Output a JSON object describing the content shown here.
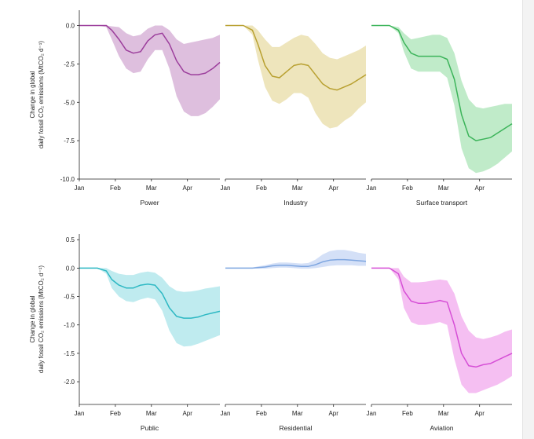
{
  "chart_data": [
    {
      "type": "area",
      "title": "Power",
      "ylabel_line1": "Change in global",
      "ylabel_line2": "daily fossil CO₂ emissions (MtCO₂ d⁻¹)",
      "ylim": [
        -10,
        1
      ],
      "yticks": [
        "0.0",
        "-2.5",
        "-5.0",
        "-7.5",
        "-10.0"
      ],
      "yticks_values": [
        0,
        -2.5,
        -5,
        -7.5,
        -10
      ],
      "xticks": [
        "Jan",
        "Feb",
        "Mar",
        "Apr"
      ],
      "color": "#9c3e9c",
      "band_color": "#d8b4d8",
      "x": [
        0,
        0.5,
        0.75,
        0.9,
        1.1,
        1.3,
        1.5,
        1.7,
        1.9,
        2.1,
        2.3,
        2.5,
        2.7,
        2.9,
        3.1,
        3.3,
        3.5,
        3.7,
        3.9
      ],
      "values": [
        0,
        0,
        0,
        -0.3,
        -0.9,
        -1.6,
        -1.8,
        -1.7,
        -1.0,
        -0.6,
        -0.5,
        -1.2,
        -2.3,
        -3.0,
        -3.2,
        -3.2,
        -3.1,
        -2.8,
        -2.4
      ],
      "lower": [
        0,
        0,
        -0.1,
        -0.9,
        -2.0,
        -2.8,
        -3.1,
        -3.0,
        -2.2,
        -1.6,
        -1.6,
        -2.8,
        -4.6,
        -5.6,
        -5.9,
        -5.9,
        -5.7,
        -5.3,
        -4.8
      ],
      "upper": [
        0,
        0,
        0,
        -0.05,
        -0.1,
        -0.5,
        -0.7,
        -0.6,
        -0.2,
        0,
        0,
        -0.3,
        -0.9,
        -1.2,
        -1.1,
        -1.0,
        -0.9,
        -0.8,
        -0.6
      ]
    },
    {
      "type": "area",
      "title": "Industry",
      "ylim": [
        -10,
        1
      ],
      "xticks": [
        "Jan",
        "Feb",
        "Mar",
        "Apr"
      ],
      "color": "#b8a030",
      "band_color": "#ebe0b0",
      "x": [
        0,
        0.5,
        0.75,
        0.9,
        1.1,
        1.3,
        1.5,
        1.7,
        1.9,
        2.1,
        2.3,
        2.5,
        2.7,
        2.9,
        3.1,
        3.3,
        3.5,
        3.7,
        3.9
      ],
      "values": [
        0,
        0,
        -0.3,
        -1.2,
        -2.6,
        -3.3,
        -3.4,
        -3.0,
        -2.6,
        -2.5,
        -2.6,
        -3.2,
        -3.8,
        -4.1,
        -4.2,
        -4.0,
        -3.8,
        -3.5,
        -3.2
      ],
      "lower": [
        0,
        0,
        -0.6,
        -2.2,
        -4.0,
        -4.9,
        -5.1,
        -4.8,
        -4.4,
        -4.4,
        -4.7,
        -5.7,
        -6.4,
        -6.7,
        -6.6,
        -6.2,
        -5.9,
        -5.4,
        -5.0
      ],
      "upper": [
        0,
        0,
        0,
        -0.3,
        -0.9,
        -1.4,
        -1.4,
        -1.1,
        -0.8,
        -0.6,
        -0.7,
        -1.2,
        -1.8,
        -2.1,
        -2.2,
        -2.0,
        -1.8,
        -1.6,
        -1.3
      ]
    },
    {
      "type": "area",
      "title": "Surface transport",
      "ylim": [
        -10,
        1
      ],
      "xticks": [
        "Jan",
        "Feb",
        "Mar",
        "Apr"
      ],
      "color": "#3cb45a",
      "band_color": "#b5e8bf",
      "x": [
        0,
        0.5,
        0.75,
        0.9,
        1.1,
        1.3,
        1.5,
        1.7,
        1.9,
        2.1,
        2.3,
        2.5,
        2.7,
        2.9,
        3.1,
        3.3,
        3.5,
        3.7,
        3.9
      ],
      "values": [
        0,
        0,
        -0.3,
        -1.1,
        -1.8,
        -2.0,
        -2.0,
        -2.0,
        -2.0,
        -2.2,
        -3.5,
        -5.8,
        -7.2,
        -7.5,
        -7.4,
        -7.3,
        -7.0,
        -6.7,
        -6.4
      ],
      "lower": [
        0,
        0,
        -0.5,
        -1.7,
        -2.8,
        -3.0,
        -3.0,
        -3.0,
        -3.0,
        -3.4,
        -5.2,
        -8.0,
        -9.3,
        -9.6,
        -9.5,
        -9.3,
        -9.0,
        -8.6,
        -8.2
      ],
      "upper": [
        0,
        0,
        -0.1,
        -0.5,
        -0.9,
        -0.8,
        -0.7,
        -0.6,
        -0.6,
        -0.8,
        -1.8,
        -3.6,
        -4.8,
        -5.3,
        -5.4,
        -5.3,
        -5.2,
        -5.1,
        -5.1
      ]
    },
    {
      "type": "area",
      "title": "Public",
      "ylabel_line1": "Change in global",
      "ylabel_line2": "daily fossil CO₂ emissions (MtCO₂ d⁻¹)",
      "ylim": [
        -2.4,
        0.6
      ],
      "yticks": [
        "0.5",
        "0.0",
        "-0.5",
        "-1.0",
        "-1.5",
        "-2.0"
      ],
      "yticks_values": [
        0.5,
        0,
        -0.5,
        -1.0,
        -1.5,
        -2.0
      ],
      "xticks": [
        "Jan",
        "Feb",
        "Mar",
        "Apr"
      ],
      "color": "#2db8c3",
      "band_color": "#b4e8ec",
      "x": [
        0,
        0.5,
        0.75,
        0.9,
        1.1,
        1.3,
        1.5,
        1.7,
        1.9,
        2.1,
        2.3,
        2.5,
        2.7,
        2.9,
        3.1,
        3.3,
        3.5,
        3.7,
        3.9
      ],
      "values": [
        0,
        0,
        -0.05,
        -0.2,
        -0.3,
        -0.35,
        -0.35,
        -0.3,
        -0.28,
        -0.3,
        -0.45,
        -0.7,
        -0.85,
        -0.88,
        -0.88,
        -0.86,
        -0.82,
        -0.79,
        -0.76
      ],
      "lower": [
        0,
        0,
        -0.1,
        -0.35,
        -0.5,
        -0.58,
        -0.6,
        -0.55,
        -0.52,
        -0.55,
        -0.75,
        -1.1,
        -1.32,
        -1.38,
        -1.37,
        -1.33,
        -1.28,
        -1.23,
        -1.18
      ],
      "upper": [
        0,
        0,
        0,
        -0.05,
        -0.1,
        -0.12,
        -0.12,
        -0.08,
        -0.06,
        -0.08,
        -0.17,
        -0.32,
        -0.4,
        -0.42,
        -0.41,
        -0.39,
        -0.36,
        -0.34,
        -0.32
      ]
    },
    {
      "type": "area",
      "title": "Residential",
      "ylim": [
        -2.4,
        0.6
      ],
      "xticks": [
        "Jan",
        "Feb",
        "Mar",
        "Apr"
      ],
      "color": "#7ea6e0",
      "band_color": "#cddbf6",
      "x": [
        0,
        0.5,
        0.75,
        0.9,
        1.1,
        1.3,
        1.5,
        1.7,
        1.9,
        2.1,
        2.3,
        2.5,
        2.7,
        2.9,
        3.1,
        3.3,
        3.5,
        3.7,
        3.9
      ],
      "values": [
        0,
        0,
        0,
        0.01,
        0.02,
        0.04,
        0.05,
        0.05,
        0.04,
        0.03,
        0.03,
        0.06,
        0.11,
        0.14,
        0.15,
        0.15,
        0.14,
        0.13,
        0.12
      ],
      "lower": [
        0,
        0,
        0,
        -0.01,
        -0.01,
        0,
        0.01,
        0.01,
        0,
        -0.01,
        -0.01,
        0,
        0.02,
        0.04,
        0.05,
        0.05,
        0.05,
        0.04,
        0.04
      ],
      "upper": [
        0,
        0,
        0.01,
        0.03,
        0.05,
        0.08,
        0.1,
        0.1,
        0.09,
        0.08,
        0.09,
        0.15,
        0.24,
        0.3,
        0.32,
        0.32,
        0.3,
        0.27,
        0.25
      ]
    },
    {
      "type": "area",
      "title": "Aviation",
      "ylim": [
        -2.4,
        0.6
      ],
      "xticks": [
        "Jan",
        "Feb",
        "Mar",
        "Apr"
      ],
      "color": "#d64fd6",
      "band_color": "#f3b4f0",
      "x": [
        0,
        0.5,
        0.75,
        0.9,
        1.1,
        1.3,
        1.5,
        1.7,
        1.9,
        2.1,
        2.3,
        2.5,
        2.7,
        2.9,
        3.1,
        3.3,
        3.5,
        3.7,
        3.9
      ],
      "values": [
        0,
        0,
        -0.1,
        -0.4,
        -0.58,
        -0.62,
        -0.62,
        -0.6,
        -0.57,
        -0.6,
        -1.0,
        -1.5,
        -1.72,
        -1.74,
        -1.7,
        -1.68,
        -1.62,
        -1.56,
        -1.5
      ],
      "lower": [
        0,
        0,
        -0.2,
        -0.7,
        -0.95,
        -1.0,
        -1.0,
        -0.98,
        -0.95,
        -1.0,
        -1.6,
        -2.05,
        -2.2,
        -2.2,
        -2.15,
        -2.1,
        -2.05,
        -1.98,
        -1.9
      ],
      "upper": [
        0,
        0,
        0,
        -0.15,
        -0.25,
        -0.25,
        -0.24,
        -0.22,
        -0.2,
        -0.22,
        -0.45,
        -0.85,
        -1.1,
        -1.22,
        -1.25,
        -1.22,
        -1.18,
        -1.12,
        -1.08
      ]
    }
  ]
}
